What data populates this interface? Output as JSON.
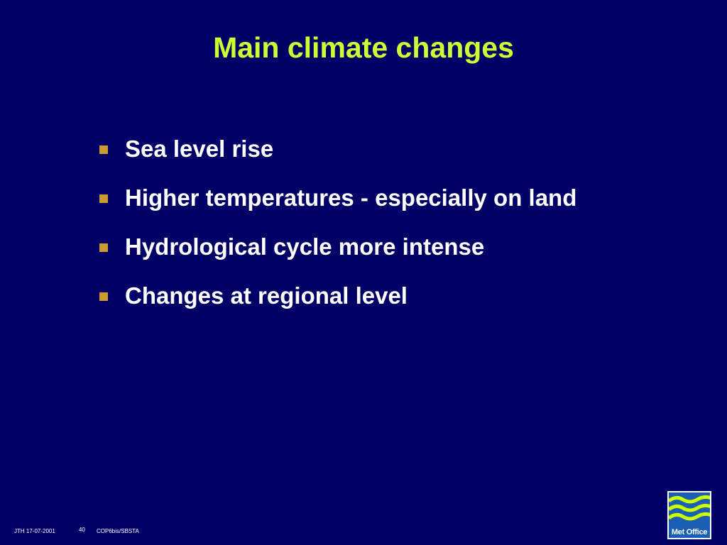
{
  "slide": {
    "title": "Main climate changes",
    "bullets": [
      "Sea level rise",
      "Higher temperatures - especially on land",
      "Hydrological cycle more intense",
      "Changes at regional level"
    ],
    "footer": {
      "author_date": "JTH 17-07-2001",
      "page_number": "40",
      "event": "COP6bis/SBSTA"
    },
    "logo": "Met Office"
  }
}
